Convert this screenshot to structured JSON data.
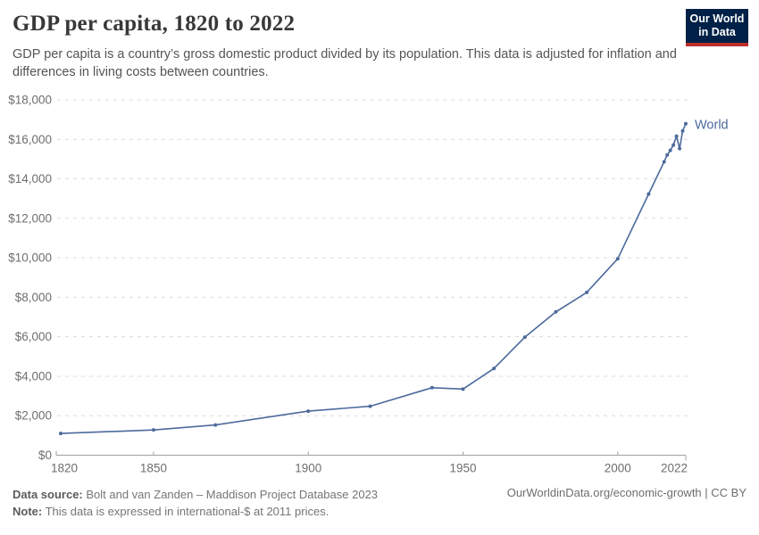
{
  "header": {
    "title": "GDP per capita, 1820 to 2022",
    "subtitle": "GDP per capita is a country’s gross domestic product divided by its population. This data is adjusted for inflation and differences in living costs between countries."
  },
  "logo": {
    "line1": "Our World",
    "line2": "in Data",
    "bg_color": "#002147",
    "accent_color": "#BE2E28"
  },
  "chart_data": {
    "type": "line",
    "title": "GDP per capita, 1820 to 2022",
    "xlabel": "",
    "ylabel": "",
    "xlim": [
      1820,
      2022
    ],
    "ylim": [
      0,
      18000
    ],
    "grid": "horizontal-dashed",
    "legend_position": "line-end-label",
    "x_ticks": [
      1820,
      1850,
      1900,
      1950,
      2000,
      2022
    ],
    "x_tick_labels": [
      "1820",
      "1850",
      "1900",
      "1950",
      "2000",
      "2022"
    ],
    "y_ticks": [
      0,
      2000,
      4000,
      6000,
      8000,
      10000,
      12000,
      14000,
      16000,
      18000
    ],
    "y_tick_labels": [
      "$0",
      "$2,000",
      "$4,000",
      "$6,000",
      "$8,000",
      "$10,000",
      "$12,000",
      "$14,000",
      "$16,000",
      "$18,000"
    ],
    "series": [
      {
        "name": "World",
        "color": "#4C6A9C",
        "points": [
          [
            1820,
            1100
          ],
          [
            1850,
            1280
          ],
          [
            1870,
            1530
          ],
          [
            1900,
            2230
          ],
          [
            1920,
            2480
          ],
          [
            1940,
            3420
          ],
          [
            1950,
            3350
          ],
          [
            1960,
            4390
          ],
          [
            1970,
            5980
          ],
          [
            1980,
            7260
          ],
          [
            1990,
            8250
          ],
          [
            2000,
            9950
          ],
          [
            2010,
            13230
          ],
          [
            2015,
            14860
          ],
          [
            2016,
            15210
          ],
          [
            2017,
            15440
          ],
          [
            2018,
            15710
          ],
          [
            2019,
            16160
          ],
          [
            2020,
            15530
          ],
          [
            2021,
            16430
          ],
          [
            2022,
            16790
          ]
        ]
      }
    ]
  },
  "footer": {
    "source_label": "Data source:",
    "source_text": " Bolt and van Zanden – Maddison Project Database 2023",
    "note_label": "Note:",
    "note_text": " This data is expressed in international-$ at 2011 prices.",
    "link_text": "OurWorldinData.org/economic-growth | CC BY"
  },
  "colors": {
    "line": "#4C6A9C",
    "grid": "#dcdcdc",
    "axis": "#a0a0a0",
    "tick_label": "#6e6e6e"
  }
}
